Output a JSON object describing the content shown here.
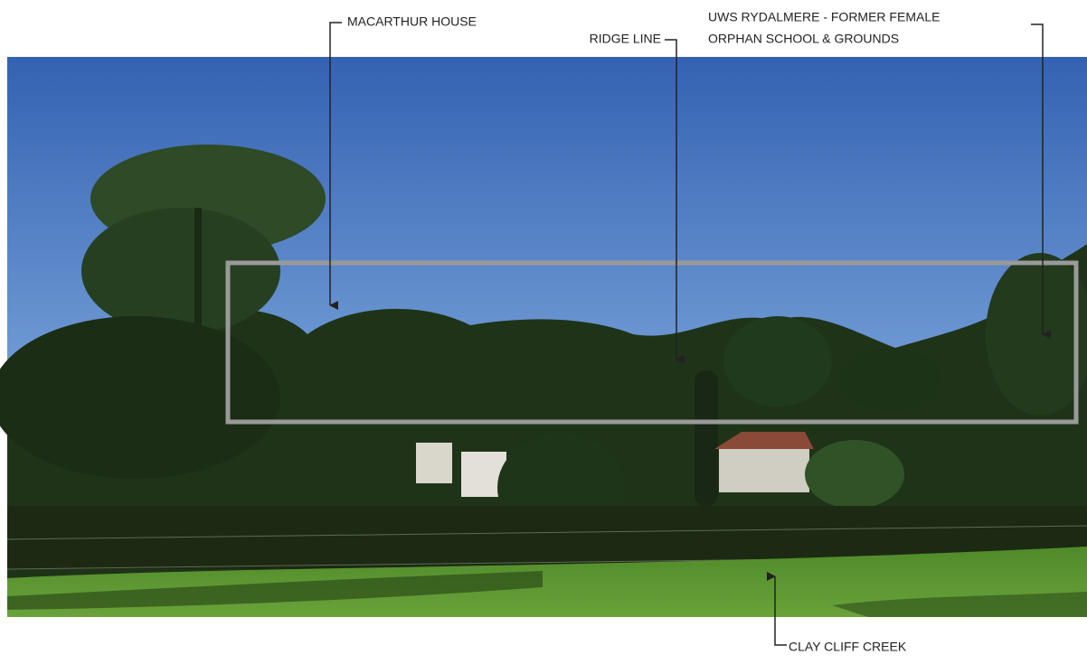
{
  "annotations": {
    "macarthur_house": "MACARTHUR HOUSE",
    "ridge_line": "RIDGE LINE",
    "uws": [
      "UWS RYDALMERE - FORMER FEMALE",
      "ORPHAN SCHOOL & GROUNDS"
    ],
    "clay_cliff_creek": "CLAY CLIFF CREEK"
  }
}
